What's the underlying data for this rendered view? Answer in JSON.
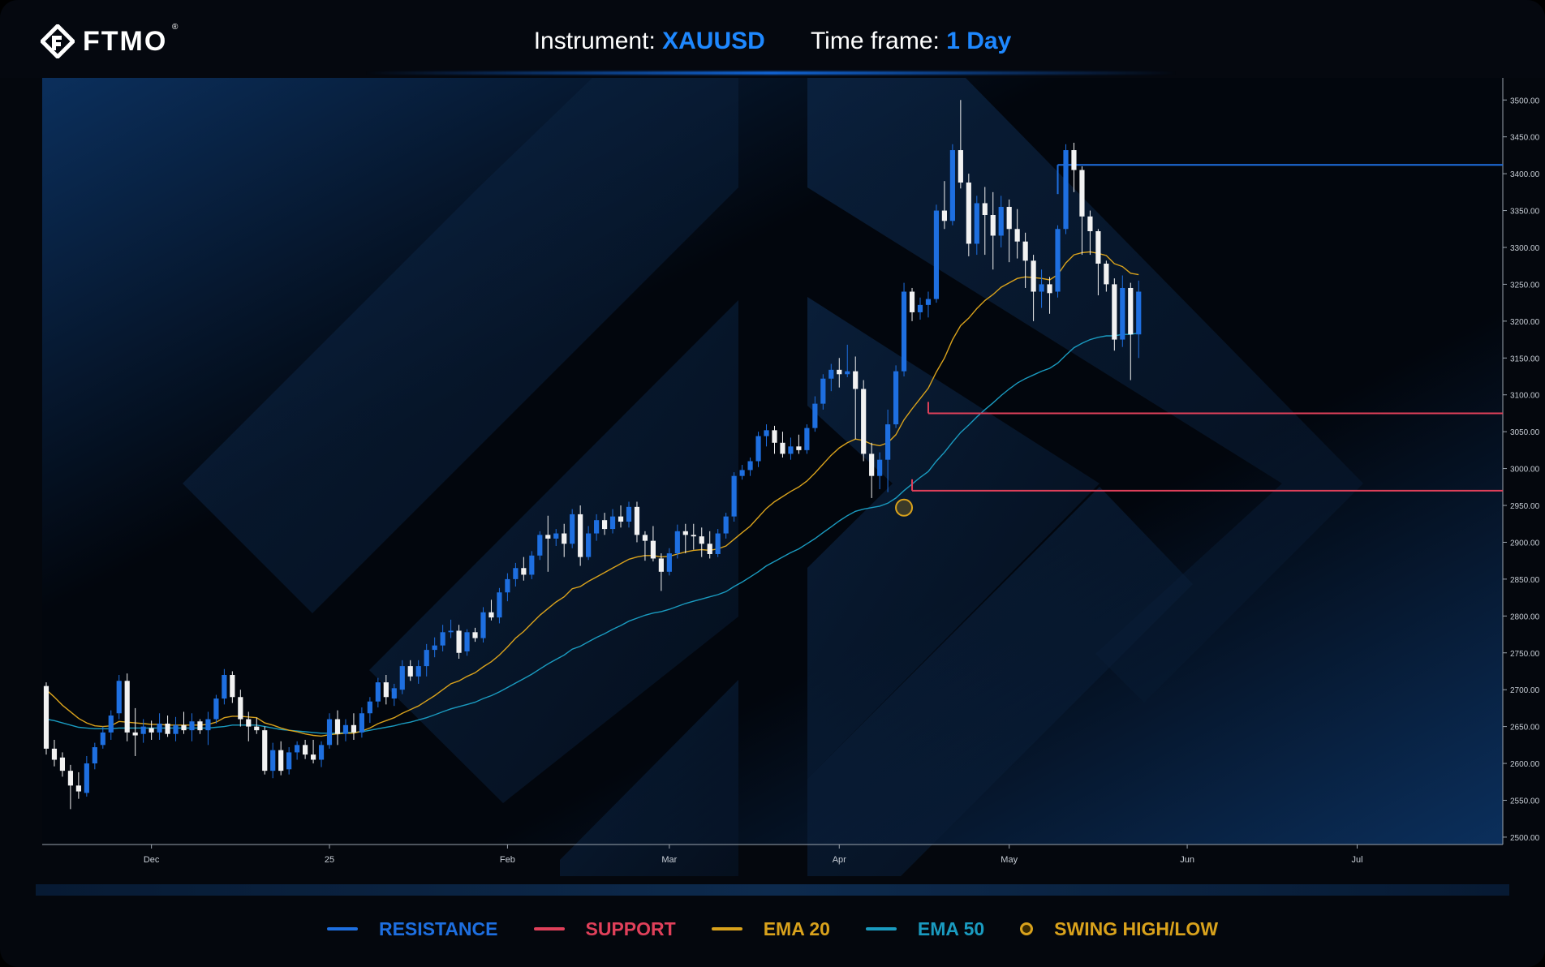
{
  "header": {
    "brand": "FTMO",
    "instrument_label": "Instrument:",
    "instrument_value": "XAUUSD",
    "timeframe_label": "Time frame:",
    "timeframe_value": "1 Day"
  },
  "legend": [
    {
      "label": "RESISTANCE",
      "color": "#1e6fe0",
      "kind": "line"
    },
    {
      "label": "SUPPORT",
      "color": "#e0405a",
      "kind": "line"
    },
    {
      "label": "EMA 20",
      "color": "#d9a21c",
      "kind": "line"
    },
    {
      "label": "EMA 50",
      "color": "#1a9bc0",
      "kind": "line"
    },
    {
      "label": "SWING HIGH/LOW",
      "color": "#d9a21c",
      "kind": "dot"
    }
  ],
  "colors": {
    "bull": "#1e6fe0",
    "bear": "#f2f2f2",
    "resistance": "#1e6fe0",
    "support": "#e0405a",
    "ema20": "#d9a21c",
    "ema50": "#1a9bc0",
    "swing": "#d9a21c"
  },
  "chart_data": {
    "type": "candlestick",
    "y_axis_side": "right",
    "ylim": [
      2490,
      3530
    ],
    "y_ticks": [
      "3500.00",
      "3450.00",
      "3400.00",
      "3350.00",
      "3300.00",
      "3250.00",
      "3200.00",
      "3150.00",
      "3100.00",
      "3050.00",
      "3000.00",
      "2950.00",
      "2900.00",
      "2850.00",
      "2800.00",
      "2750.00",
      "2700.00",
      "2650.00",
      "2600.00",
      "2550.00",
      "2500.00"
    ],
    "x_labels": [
      {
        "label": "Dec",
        "index": 13
      },
      {
        "label": "25",
        "index": 35
      },
      {
        "label": "Feb",
        "index": 57
      },
      {
        "label": "Mar",
        "index": 77
      },
      {
        "label": "Apr",
        "index": 98
      },
      {
        "label": "May",
        "index": 119
      },
      {
        "label": "Jun",
        "index": 141
      },
      {
        "label": "Jul",
        "index": 162
      }
    ],
    "x_range": [
      -0.5,
      180
    ],
    "candles_ohlc": [
      [
        2705,
        2710,
        2612,
        2620
      ],
      [
        2620,
        2632,
        2596,
        2605
      ],
      [
        2608,
        2615,
        2582,
        2590
      ],
      [
        2590,
        2598,
        2538,
        2570
      ],
      [
        2570,
        2588,
        2552,
        2562
      ],
      [
        2560,
        2610,
        2555,
        2600
      ],
      [
        2600,
        2628,
        2592,
        2622
      ],
      [
        2625,
        2650,
        2620,
        2642
      ],
      [
        2642,
        2672,
        2632,
        2665
      ],
      [
        2668,
        2720,
        2660,
        2712
      ],
      [
        2712,
        2722,
        2630,
        2642
      ],
      [
        2642,
        2675,
        2610,
        2638
      ],
      [
        2640,
        2660,
        2628,
        2650
      ],
      [
        2648,
        2658,
        2632,
        2642
      ],
      [
        2642,
        2668,
        2632,
        2654
      ],
      [
        2654,
        2665,
        2636,
        2640
      ],
      [
        2640,
        2663,
        2630,
        2652
      ],
      [
        2652,
        2670,
        2640,
        2645
      ],
      [
        2645,
        2668,
        2630,
        2657
      ],
      [
        2657,
        2660,
        2640,
        2645
      ],
      [
        2645,
        2670,
        2625,
        2660
      ],
      [
        2660,
        2693,
        2654,
        2688
      ],
      [
        2688,
        2728,
        2680,
        2720
      ],
      [
        2720,
        2725,
        2682,
        2690
      ],
      [
        2690,
        2700,
        2650,
        2660
      ],
      [
        2660,
        2670,
        2630,
        2650
      ],
      [
        2650,
        2662,
        2640,
        2645
      ],
      [
        2645,
        2650,
        2585,
        2590
      ],
      [
        2590,
        2628,
        2580,
        2618
      ],
      [
        2618,
        2630,
        2584,
        2590
      ],
      [
        2592,
        2622,
        2585,
        2615
      ],
      [
        2615,
        2630,
        2605,
        2625
      ],
      [
        2625,
        2632,
        2606,
        2612
      ],
      [
        2612,
        2632,
        2600,
        2605
      ],
      [
        2605,
        2630,
        2595,
        2625
      ],
      [
        2625,
        2668,
        2620,
        2660
      ],
      [
        2660,
        2672,
        2625,
        2640
      ],
      [
        2640,
        2660,
        2630,
        2652
      ],
      [
        2652,
        2668,
        2632,
        2642
      ],
      [
        2642,
        2676,
        2635,
        2668
      ],
      [
        2668,
        2690,
        2655,
        2684
      ],
      [
        2684,
        2716,
        2676,
        2710
      ],
      [
        2710,
        2720,
        2680,
        2690
      ],
      [
        2688,
        2708,
        2678,
        2702
      ],
      [
        2700,
        2740,
        2694,
        2732
      ],
      [
        2732,
        2740,
        2712,
        2718
      ],
      [
        2718,
        2740,
        2708,
        2732
      ],
      [
        2732,
        2762,
        2718,
        2754
      ],
      [
        2754,
        2771,
        2744,
        2760
      ],
      [
        2760,
        2788,
        2752,
        2778
      ],
      [
        2778,
        2795,
        2770,
        2780
      ],
      [
        2780,
        2788,
        2742,
        2750
      ],
      [
        2752,
        2782,
        2746,
        2778
      ],
      [
        2778,
        2784,
        2765,
        2770
      ],
      [
        2770,
        2812,
        2764,
        2805
      ],
      [
        2805,
        2822,
        2794,
        2798
      ],
      [
        2798,
        2838,
        2790,
        2832
      ],
      [
        2832,
        2858,
        2820,
        2850
      ],
      [
        2850,
        2872,
        2840,
        2865
      ],
      [
        2865,
        2880,
        2848,
        2856
      ],
      [
        2856,
        2888,
        2850,
        2882
      ],
      [
        2882,
        2915,
        2876,
        2910
      ],
      [
        2910,
        2936,
        2860,
        2905
      ],
      [
        2905,
        2918,
        2895,
        2912
      ],
      [
        2912,
        2925,
        2880,
        2898
      ],
      [
        2898,
        2945,
        2892,
        2938
      ],
      [
        2938,
        2950,
        2868,
        2880
      ],
      [
        2880,
        2922,
        2876,
        2912
      ],
      [
        2912,
        2938,
        2902,
        2930
      ],
      [
        2930,
        2940,
        2910,
        2918
      ],
      [
        2918,
        2945,
        2912,
        2935
      ],
      [
        2935,
        2950,
        2920,
        2928
      ],
      [
        2928,
        2955,
        2920,
        2948
      ],
      [
        2948,
        2955,
        2900,
        2910
      ],
      [
        2910,
        2915,
        2875,
        2902
      ],
      [
        2902,
        2922,
        2874,
        2878
      ],
      [
        2878,
        2885,
        2834,
        2860
      ],
      [
        2860,
        2892,
        2855,
        2885
      ],
      [
        2885,
        2924,
        2878,
        2915
      ],
      [
        2915,
        2925,
        2885,
        2910
      ],
      [
        2910,
        2925,
        2890,
        2908
      ],
      [
        2908,
        2920,
        2880,
        2898
      ],
      [
        2898,
        2915,
        2878,
        2884
      ],
      [
        2884,
        2918,
        2880,
        2912
      ],
      [
        2912,
        2940,
        2905,
        2935
      ],
      [
        2935,
        2995,
        2928,
        2990
      ],
      [
        2990,
        3005,
        2985,
        2998
      ],
      [
        2998,
        3015,
        2990,
        3010
      ],
      [
        3010,
        3050,
        3002,
        3044
      ],
      [
        3044,
        3060,
        3030,
        3052
      ],
      [
        3052,
        3058,
        3020,
        3035
      ],
      [
        3035,
        3050,
        3015,
        3020
      ],
      [
        3020,
        3042,
        3012,
        3030
      ],
      [
        3030,
        3046,
        3020,
        3025
      ],
      [
        3025,
        3060,
        3020,
        3055
      ],
      [
        3055,
        3098,
        3050,
        3088
      ],
      [
        3088,
        3128,
        3080,
        3122
      ],
      [
        3122,
        3142,
        3105,
        3134
      ],
      [
        3134,
        3150,
        3110,
        3128
      ],
      [
        3128,
        3168,
        3124,
        3132
      ],
      [
        3132,
        3152,
        3040,
        3108
      ],
      [
        3108,
        3120,
        3010,
        3020
      ],
      [
        3020,
        3035,
        2960,
        2990
      ],
      [
        2990,
        3022,
        2972,
        3012
      ],
      [
        3012,
        3080,
        2968,
        3060
      ],
      [
        3060,
        3140,
        3055,
        3132
      ],
      [
        3132,
        3252,
        3125,
        3240
      ],
      [
        3240,
        3245,
        3200,
        3212
      ],
      [
        3212,
        3232,
        3202,
        3222
      ],
      [
        3222,
        3240,
        3205,
        3230
      ],
      [
        3230,
        3358,
        3225,
        3350
      ],
      [
        3350,
        3390,
        3325,
        3336
      ],
      [
        3336,
        3440,
        3330,
        3432
      ],
      [
        3432,
        3500,
        3380,
        3388
      ],
      [
        3388,
        3400,
        3288,
        3305
      ],
      [
        3305,
        3370,
        3290,
        3360
      ],
      [
        3360,
        3382,
        3290,
        3344
      ],
      [
        3344,
        3375,
        3270,
        3316
      ],
      [
        3316,
        3370,
        3300,
        3355
      ],
      [
        3355,
        3365,
        3280,
        3325
      ],
      [
        3325,
        3352,
        3285,
        3308
      ],
      [
        3308,
        3320,
        3245,
        3282
      ],
      [
        3282,
        3290,
        3200,
        3240
      ],
      [
        3240,
        3270,
        3218,
        3250
      ],
      [
        3250,
        3260,
        3210,
        3238
      ],
      [
        3240,
        3330,
        3232,
        3325
      ],
      [
        3325,
        3440,
        3318,
        3432
      ],
      [
        3432,
        3442,
        3375,
        3405
      ],
      [
        3405,
        3410,
        3290,
        3342
      ],
      [
        3342,
        3350,
        3290,
        3322
      ],
      [
        3322,
        3325,
        3235,
        3278
      ],
      [
        3278,
        3282,
        3240,
        3250
      ],
      [
        3250,
        3258,
        3160,
        3175
      ],
      [
        3175,
        3262,
        3165,
        3245
      ],
      [
        3245,
        3252,
        3120,
        3182
      ],
      [
        3182,
        3255,
        3150,
        3240
      ]
    ],
    "ema20": [
      2700,
      2690,
      2679,
      2670,
      2661,
      2655,
      2651,
      2650,
      2651,
      2657,
      2656,
      2655,
      2654,
      2653,
      2653,
      2652,
      2652,
      2652,
      2652,
      2652,
      2653,
      2656,
      2662,
      2664,
      2664,
      2663,
      2662,
      2655,
      2652,
      2648,
      2645,
      2643,
      2640,
      2638,
      2637,
      2639,
      2640,
      2641,
      2641,
      2644,
      2648,
      2654,
      2658,
      2662,
      2668,
      2673,
      2678,
      2685,
      2692,
      2700,
      2708,
      2712,
      2718,
      2723,
      2731,
      2738,
      2747,
      2758,
      2770,
      2779,
      2790,
      2801,
      2810,
      2819,
      2826,
      2837,
      2840,
      2847,
      2853,
      2859,
      2865,
      2871,
      2877,
      2880,
      2882,
      2882,
      2880,
      2881,
      2884,
      2887,
      2889,
      2890,
      2889,
      2891,
      2895,
      2904,
      2913,
      2922,
      2934,
      2946,
      2955,
      2962,
      2969,
      2975,
      2983,
      2994,
      3006,
      3018,
      3028,
      3035,
      3040,
      3038,
      3033,
      3031,
      3035,
      3046,
      3066,
      3081,
      3095,
      3109,
      3131,
      3150,
      3175,
      3194,
      3204,
      3217,
      3228,
      3236,
      3246,
      3252,
      3258,
      3260,
      3259,
      3258,
      3256,
      3263,
      3279,
      3290,
      3293,
      3294,
      3292,
      3289,
      3278,
      3274,
      3265,
      3263
    ],
    "ema50": [
      2660,
      2658,
      2655,
      2652,
      2649,
      2648,
      2647,
      2647,
      2647,
      2648,
      2648,
      2648,
      2648,
      2648,
      2648,
      2648,
      2648,
      2648,
      2648,
      2648,
      2648,
      2649,
      2650,
      2652,
      2652,
      2652,
      2652,
      2650,
      2648,
      2646,
      2645,
      2644,
      2643,
      2642,
      2641,
      2641,
      2641,
      2642,
      2642,
      2643,
      2645,
      2647,
      2649,
      2651,
      2654,
      2656,
      2659,
      2662,
      2666,
      2670,
      2674,
      2677,
      2680,
      2683,
      2688,
      2692,
      2697,
      2703,
      2709,
      2715,
      2721,
      2728,
      2735,
      2741,
      2747,
      2755,
      2759,
      2765,
      2771,
      2776,
      2782,
      2787,
      2793,
      2797,
      2801,
      2804,
      2806,
      2809,
      2813,
      2817,
      2820,
      2823,
      2826,
      2829,
      2833,
      2840,
      2846,
      2853,
      2860,
      2868,
      2874,
      2880,
      2886,
      2891,
      2898,
      2905,
      2913,
      2921,
      2929,
      2936,
      2942,
      2945,
      2947,
      2949,
      2953,
      2960,
      2970,
      2979,
      2988,
      2996,
      3010,
      3022,
      3036,
      3049,
      3059,
      3070,
      3080,
      3089,
      3099,
      3108,
      3116,
      3122,
      3127,
      3132,
      3136,
      3143,
      3154,
      3164,
      3170,
      3175,
      3178,
      3180,
      3180,
      3182,
      3182,
      3184
    ],
    "resistance": {
      "level": 3412,
      "start_index": 125,
      "label": "RESISTANCE"
    },
    "support": [
      {
        "level": 3075,
        "start_index": 109,
        "label": "SUPPORT"
      },
      {
        "level": 2970,
        "start_index": 107,
        "label": "SUPPORT"
      }
    ],
    "swing_points": [
      {
        "index": 106,
        "price": 2958,
        "label": "SWING HIGH/LOW"
      }
    ]
  }
}
